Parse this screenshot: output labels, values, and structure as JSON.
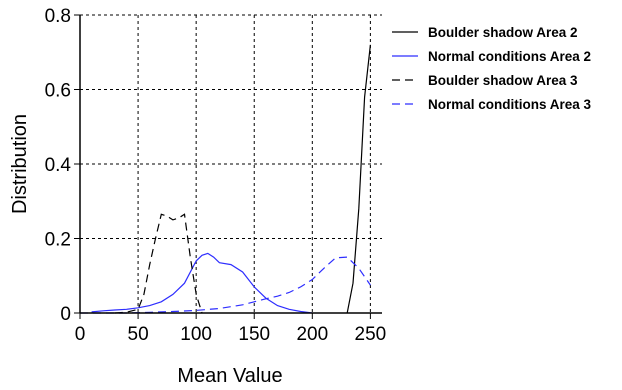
{
  "chart_data": {
    "type": "line",
    "xlabel": "Mean Value",
    "ylabel": "Distribution",
    "xlim": [
      0,
      260
    ],
    "ylim": [
      0,
      0.8
    ],
    "xticks": [
      0,
      50,
      100,
      150,
      200,
      250
    ],
    "yticks": [
      0,
      0.2,
      0.4,
      0.6,
      0.8
    ],
    "xtick_labels": [
      "0",
      "50",
      "100",
      "150",
      "200",
      "250"
    ],
    "ytick_labels": [
      "0",
      "0.2",
      "0.4",
      "0.6",
      "0.8"
    ],
    "grid": true,
    "legend_position": "right",
    "series": [
      {
        "name": "Boulder shadow Area 2",
        "color": "#000000",
        "dash": "solid",
        "x": [
          230,
          235,
          240,
          245,
          250
        ],
        "y": [
          0,
          0.08,
          0.28,
          0.58,
          0.72
        ]
      },
      {
        "name": "Normal conditions Area 2",
        "color": "#2e2eff",
        "dash": "solid",
        "x": [
          10,
          20,
          30,
          40,
          50,
          60,
          70,
          80,
          90,
          100,
          105,
          110,
          115,
          120,
          130,
          140,
          150,
          160,
          170,
          180,
          190,
          200
        ],
        "y": [
          0.003,
          0.006,
          0.008,
          0.01,
          0.014,
          0.02,
          0.03,
          0.05,
          0.08,
          0.14,
          0.155,
          0.16,
          0.15,
          0.135,
          0.13,
          0.11,
          0.07,
          0.04,
          0.02,
          0.01,
          0.004,
          0.0
        ]
      },
      {
        "name": "Boulder shadow Area 3",
        "color": "#000000",
        "dash": "dashed",
        "x": [
          30,
          40,
          50,
          55,
          60,
          65,
          70,
          75,
          80,
          85,
          90,
          95,
          100,
          105
        ],
        "y": [
          0.0,
          0.002,
          0.01,
          0.05,
          0.13,
          0.2,
          0.265,
          0.26,
          0.25,
          0.255,
          0.265,
          0.15,
          0.05,
          0.0
        ]
      },
      {
        "name": "Normal conditions Area 3",
        "color": "#2e2eff",
        "dash": "dashed",
        "x": [
          0,
          20,
          40,
          60,
          80,
          100,
          120,
          140,
          150,
          160,
          170,
          180,
          190,
          200,
          210,
          220,
          230,
          240,
          250
        ],
        "y": [
          0.0,
          0.0,
          0.0,
          0.002,
          0.004,
          0.007,
          0.012,
          0.022,
          0.03,
          0.038,
          0.045,
          0.055,
          0.07,
          0.09,
          0.12,
          0.148,
          0.15,
          0.12,
          0.075
        ]
      }
    ]
  }
}
